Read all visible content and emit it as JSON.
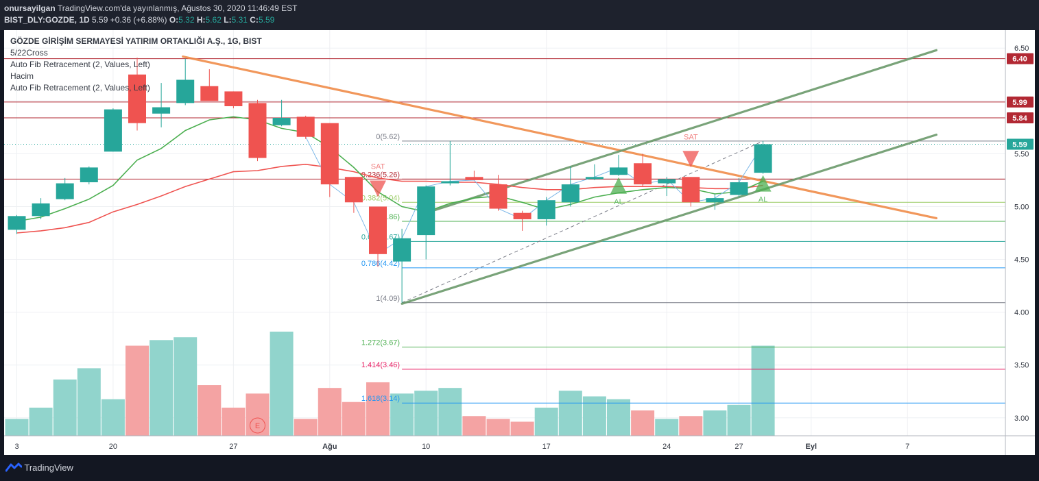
{
  "header": {
    "line1_author": "onursayilgan",
    "line1_rest": "TradingView.com'da yayınlanmış, Ağustos 30, 2020 11:46:49 EST",
    "line2_symbol": "BIST_DLY:GOZDE, 1D",
    "line2_price": "5.59",
    "line2_change": "+0.36 (+6.88%)",
    "o_label": "O:",
    "o_val": "5.32",
    "h_label": "H:",
    "h_val": "5.62",
    "l_label": "L:",
    "l_val": "5.31",
    "c_label": "C:",
    "c_val": "5.59"
  },
  "legend": [
    "GÖZDE GİRİŞİM SERMAYESİ YATIRIM ORTAKLIĞI A.Ş., 1G, BIST",
    "5/22Cross",
    "Auto Fib Retracement (2, Values, Left)",
    "Hacim",
    "Auto Fib Retracement (2, Values, Left)"
  ],
  "footer": {
    "brand": "TradingView"
  },
  "chart_data": {
    "type": "candlestick",
    "ylim": [
      2.83,
      6.67
    ],
    "y_ticks": [
      "6.50",
      "6.00",
      "5.50",
      "5.00",
      "4.50",
      "4.00",
      "3.50",
      "3.00"
    ],
    "x_ticks": [
      {
        "label": "3",
        "i": 0
      },
      {
        "label": "20",
        "i": 4
      },
      {
        "label": "27",
        "i": 9
      },
      {
        "label": "Ağu",
        "i": 13
      },
      {
        "label": "10",
        "i": 17
      },
      {
        "label": "17",
        "i": 22
      },
      {
        "label": "24",
        "i": 27
      },
      {
        "label": "27",
        "i": 30
      },
      {
        "label": "Eyl",
        "i": 33
      },
      {
        "label": "7",
        "i": 37
      }
    ],
    "candles": [
      {
        "o": 4.78,
        "h": 4.92,
        "l": 4.74,
        "c": 4.91
      },
      {
        "o": 4.91,
        "h": 5.08,
        "l": 4.88,
        "c": 5.03
      },
      {
        "o": 5.07,
        "h": 5.27,
        "l": 5.06,
        "c": 5.22
      },
      {
        "o": 5.23,
        "h": 5.38,
        "l": 5.21,
        "c": 5.37
      },
      {
        "o": 5.52,
        "h": 5.93,
        "l": 5.52,
        "c": 5.92
      },
      {
        "o": 6.25,
        "h": 6.41,
        "l": 5.72,
        "c": 5.79
      },
      {
        "o": 5.88,
        "h": 6.17,
        "l": 5.75,
        "c": 5.94
      },
      {
        "o": 5.98,
        "h": 6.4,
        "l": 5.96,
        "c": 6.2
      },
      {
        "o": 6.14,
        "h": 6.3,
        "l": 6.01,
        "c": 6.0
      },
      {
        "o": 6.09,
        "h": 6.09,
        "l": 5.93,
        "c": 5.95
      },
      {
        "o": 5.98,
        "h": 6.01,
        "l": 5.43,
        "c": 5.46
      },
      {
        "o": 5.77,
        "h": 6.01,
        "l": 5.76,
        "c": 5.84
      },
      {
        "o": 5.85,
        "h": 5.86,
        "l": 5.64,
        "c": 5.66
      },
      {
        "o": 5.79,
        "h": 5.79,
        "l": 5.09,
        "c": 5.21
      },
      {
        "o": 5.28,
        "h": 5.28,
        "l": 4.94,
        "c": 5.04
      },
      {
        "o": 5.0,
        "h": 5.0,
        "l": 4.43,
        "c": 4.55
      },
      {
        "o": 4.48,
        "h": 4.79,
        "l": 4.09,
        "c": 4.7
      },
      {
        "o": 4.73,
        "h": 5.2,
        "l": 4.5,
        "c": 5.19
      },
      {
        "o": 5.22,
        "h": 5.62,
        "l": 5.2,
        "c": 5.24
      },
      {
        "o": 5.28,
        "h": 5.34,
        "l": 5.25,
        "c": 5.25
      },
      {
        "o": 5.21,
        "h": 5.3,
        "l": 4.96,
        "c": 4.98
      },
      {
        "o": 4.94,
        "h": 4.96,
        "l": 4.77,
        "c": 4.88
      },
      {
        "o": 4.88,
        "h": 5.09,
        "l": 4.82,
        "c": 5.06
      },
      {
        "o": 5.04,
        "h": 5.38,
        "l": 5.0,
        "c": 5.21
      },
      {
        "o": 5.26,
        "h": 5.4,
        "l": 5.25,
        "c": 5.28
      },
      {
        "o": 5.3,
        "h": 5.49,
        "l": 5.29,
        "c": 5.37
      },
      {
        "o": 5.41,
        "h": 5.5,
        "l": 5.19,
        "c": 5.21
      },
      {
        "o": 5.22,
        "h": 5.28,
        "l": 5.1,
        "c": 5.26
      },
      {
        "o": 5.28,
        "h": 5.28,
        "l": 5.0,
        "c": 5.04
      },
      {
        "o": 5.04,
        "h": 5.12,
        "l": 4.97,
        "c": 5.08
      },
      {
        "o": 5.11,
        "h": 5.27,
        "l": 5.09,
        "c": 5.23
      },
      {
        "o": 5.32,
        "h": 5.62,
        "l": 5.31,
        "c": 5.59
      }
    ],
    "ma_fast": [
      4.86,
      4.9,
      4.98,
      5.07,
      5.2,
      5.44,
      5.55,
      5.72,
      5.82,
      5.85,
      5.82,
      5.74,
      5.7,
      5.56,
      5.37,
      5.14,
      5.0,
      4.95,
      5.03,
      5.08,
      5.1,
      5.04,
      4.97,
      5.02,
      5.09,
      5.13,
      5.16,
      5.18,
      5.17,
      5.12,
      5.14,
      5.24
    ],
    "ma_slow": [
      4.75,
      4.77,
      4.8,
      4.85,
      4.95,
      5.02,
      5.1,
      5.19,
      5.26,
      5.33,
      5.34,
      5.38,
      5.4,
      5.37,
      5.33,
      5.27,
      5.24,
      5.24,
      5.23,
      5.23,
      5.21,
      5.18,
      5.16,
      5.16,
      5.18,
      5.19,
      5.19,
      5.19,
      5.18,
      5.17,
      5.17,
      5.2
    ],
    "close_line_from_index": 12,
    "volume_scale_max": 3.7,
    "volume": [
      {
        "v": 0.6,
        "up": true
      },
      {
        "v": 1.0,
        "up": true
      },
      {
        "v": 2.0,
        "up": true
      },
      {
        "v": 2.4,
        "up": true
      },
      {
        "v": 1.3,
        "up": true
      },
      {
        "v": 3.2,
        "up": false
      },
      {
        "v": 3.4,
        "up": true
      },
      {
        "v": 3.5,
        "up": true
      },
      {
        "v": 1.8,
        "up": false
      },
      {
        "v": 1.0,
        "up": false
      },
      {
        "v": 1.5,
        "up": false
      },
      {
        "v": 3.7,
        "up": true
      },
      {
        "v": 0.6,
        "up": false
      },
      {
        "v": 1.7,
        "up": false
      },
      {
        "v": 1.2,
        "up": false
      },
      {
        "v": 1.9,
        "up": false
      },
      {
        "v": 1.5,
        "up": true
      },
      {
        "v": 1.6,
        "up": true
      },
      {
        "v": 1.7,
        "up": true
      },
      {
        "v": 0.7,
        "up": false
      },
      {
        "v": 0.6,
        "up": false
      },
      {
        "v": 0.5,
        "up": false
      },
      {
        "v": 1.0,
        "up": true
      },
      {
        "v": 1.6,
        "up": true
      },
      {
        "v": 1.4,
        "up": true
      },
      {
        "v": 1.3,
        "up": true
      },
      {
        "v": 0.9,
        "up": false
      },
      {
        "v": 0.6,
        "up": true
      },
      {
        "v": 0.7,
        "up": false
      },
      {
        "v": 0.9,
        "up": true
      },
      {
        "v": 1.1,
        "up": true
      },
      {
        "v": 3.2,
        "up": true
      }
    ],
    "horizontal_levels": [
      {
        "y": 6.4,
        "color": "#b22833"
      },
      {
        "y": 5.99,
        "color": "#b22833"
      },
      {
        "y": 5.84,
        "color": "#b22833"
      },
      {
        "y": 5.26,
        "color": "#b22833"
      }
    ],
    "price_tags": [
      {
        "text": "6.40",
        "y": 6.4,
        "bg": "#b22833"
      },
      {
        "text": "5.99",
        "y": 5.99,
        "bg": "#b22833"
      },
      {
        "text": "5.84",
        "y": 5.84,
        "bg": "#b22833"
      },
      {
        "text": "5.59",
        "y": 5.59,
        "bg": "#26a69a"
      }
    ],
    "last_price": 5.59,
    "fib_start_index": 16,
    "fib_levels": [
      {
        "label": "0(5.62)",
        "y": 5.62,
        "color": "#787b86"
      },
      {
        "label": "0.236(5.26)",
        "y": 5.26,
        "color": "#b22833"
      },
      {
        "label": "0.382(5.04)",
        "y": 5.04,
        "color": "#9ccc65"
      },
      {
        "label": "0.5(4.86)",
        "y": 4.86,
        "color": "#4caf50"
      },
      {
        "label": "0.618(4.67)",
        "y": 4.67,
        "color": "#26a69a"
      },
      {
        "label": "0.786(4.42)",
        "y": 4.42,
        "color": "#2196f3"
      },
      {
        "label": "1(4.09)",
        "y": 4.09,
        "color": "#787b86"
      },
      {
        "label": "1.272(3.67)",
        "y": 3.67,
        "color": "#4caf50"
      },
      {
        "label": "1.414(3.46)",
        "y": 3.46,
        "color": "#e91e63"
      },
      {
        "label": "1.618(3.14)",
        "y": 3.14,
        "color": "#2196f3"
      }
    ],
    "trend_lines": [
      {
        "x1": 6.9,
        "y1": 6.42,
        "x2": 38.2,
        "y2": 4.89,
        "color": "#f08c4a"
      },
      {
        "x1": 17.0,
        "y1": 4.94,
        "x2": 38.2,
        "y2": 6.48,
        "color": "#6b9a6b"
      },
      {
        "x1": 16.0,
        "y1": 4.08,
        "x2": 38.2,
        "y2": 5.68,
        "color": "#6b9a6b"
      }
    ],
    "dashed_line": {
      "x1": 16.0,
      "y1": 4.09,
      "x2": 31.0,
      "y2": 5.62
    },
    "signals": [
      {
        "type": "SAT",
        "i": 15,
        "label": "SAT"
      },
      {
        "type": "SAT",
        "i": 28,
        "label": "SAT"
      },
      {
        "type": "AL",
        "i": 25,
        "label": "AL"
      },
      {
        "type": "AL",
        "i": 31,
        "label": "AL"
      }
    ],
    "event_marker": {
      "i": 10,
      "label": "E"
    }
  }
}
